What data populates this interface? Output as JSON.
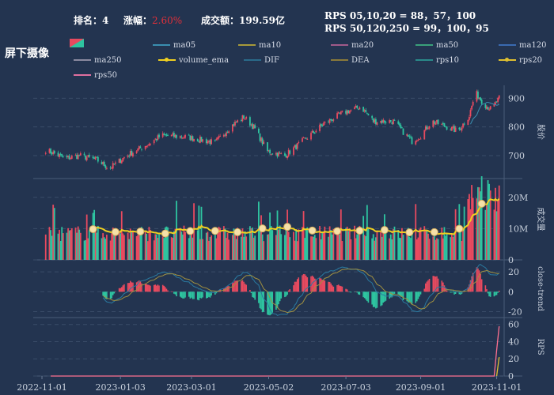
{
  "header": {
    "rank_label": "排名：",
    "rank_value": "4",
    "change_label": "涨幅：",
    "change_value": "2.60%",
    "amount_label": "成交额：",
    "amount_value": "199.59亿",
    "rps_short": "RPS 05,10,20 = 88，57，100",
    "rps_long": "RPS 50,120,250 = 99，100，95",
    "stock_name": "屏下摄像"
  },
  "legend": [
    {
      "label": "ma05",
      "color": "#3a8fb0"
    },
    {
      "label": "ma10",
      "color": "#a89a3a"
    },
    {
      "label": "ma20",
      "color": "#a05a8a"
    },
    {
      "label": "ma50",
      "color": "#3aa07a"
    },
    {
      "label": "ma120",
      "color": "#3a6ab0"
    },
    {
      "label": "ma250",
      "color": "#8a8aa0"
    },
    {
      "label": "volume_ema",
      "color": "#f0d020",
      "dot": true
    },
    {
      "label": "DIF",
      "color": "#2a6a8a"
    },
    {
      "label": "DEA",
      "color": "#8a7a3a"
    },
    {
      "label": "rps10",
      "color": "#2a8a8a"
    },
    {
      "label": "rps20",
      "color": "#e0c030",
      "dot": true
    },
    {
      "label": "rps50",
      "color": "#e070a0"
    }
  ],
  "colors": {
    "up": "#e84a5f",
    "down": "#2ec4a0",
    "volume_ema": "#f0d020",
    "rps50": "#ff7090",
    "grid": "#3a4c68",
    "axis_text": "#c8d0dc"
  },
  "chart_data": [
    {
      "type": "candlestick",
      "ylabel": "股价",
      "ylim": [
        620,
        945
      ],
      "yticks": [
        700,
        800,
        900
      ],
      "keypoints": [
        [
          "2022-11-01",
          700
        ],
        [
          "2022-11-04",
          720
        ],
        [
          "2022-11-20",
          690
        ],
        [
          "2022-12-01",
          700
        ],
        [
          "2022-12-15",
          685
        ],
        [
          "2022-12-25",
          655
        ],
        [
          "2023-01-08",
          700
        ],
        [
          "2023-01-25",
          740
        ],
        [
          "2023-02-05",
          770
        ],
        [
          "2023-02-25",
          765
        ],
        [
          "2023-03-20",
          745
        ],
        [
          "2023-04-01",
          800
        ],
        [
          "2023-04-12",
          835
        ],
        [
          "2023-04-20",
          800
        ],
        [
          "2023-05-01",
          715
        ],
        [
          "2023-05-15",
          700
        ],
        [
          "2023-06-01",
          760
        ],
        [
          "2023-06-15",
          810
        ],
        [
          "2023-07-01",
          850
        ],
        [
          "2023-07-15",
          870
        ],
        [
          "2023-07-25",
          820
        ],
        [
          "2023-08-10",
          820
        ],
        [
          "2023-08-25",
          750
        ],
        [
          "2023-09-01",
          770
        ],
        [
          "2023-09-10",
          820
        ],
        [
          "2023-09-22",
          800
        ],
        [
          "2023-10-01",
          785
        ],
        [
          "2023-10-10",
          840
        ],
        [
          "2023-10-15",
          920
        ],
        [
          "2023-10-22",
          880
        ],
        [
          "2023-10-28",
          860
        ],
        [
          "2023-11-03",
          900
        ]
      ]
    },
    {
      "type": "bar",
      "ylabel": "成交量",
      "ylim": [
        0,
        26
      ],
      "yticks": [
        0,
        10,
        20
      ],
      "ytick_labels": [
        "0",
        "10M",
        "20M"
      ],
      "series": [
        {
          "name": "volume_ema",
          "type": "line"
        }
      ]
    },
    {
      "type": "line",
      "ylabel": "close-trend",
      "ylim": [
        -26,
        32
      ],
      "yticks": [
        -20,
        0,
        20
      ],
      "series": [
        {
          "name": "DIF"
        },
        {
          "name": "DEA"
        }
      ]
    },
    {
      "type": "line",
      "ylabel": "RPS",
      "ylim": [
        0,
        68
      ],
      "yticks": [
        0,
        20,
        40,
        60
      ],
      "series": [
        {
          "name": "rps50",
          "points": [
            [
              "2022-11-08",
              0
            ],
            [
              "2023-10-30",
              0
            ],
            [
              "2023-11-01",
              30
            ],
            [
              "2023-11-03",
              58
            ]
          ]
        },
        {
          "name": "rps20",
          "points": [
            [
              "2023-11-01",
              0
            ],
            [
              "2023-11-03",
              22
            ]
          ]
        }
      ]
    }
  ],
  "x_axis": {
    "start": "2022-10-25",
    "end": "2023-11-07",
    "ticks": [
      "2022-11-01",
      "2023-01-03",
      "2023-03-01",
      "2023-05-02",
      "2023-07-03",
      "2023-09-01",
      "2023-11-01"
    ]
  }
}
